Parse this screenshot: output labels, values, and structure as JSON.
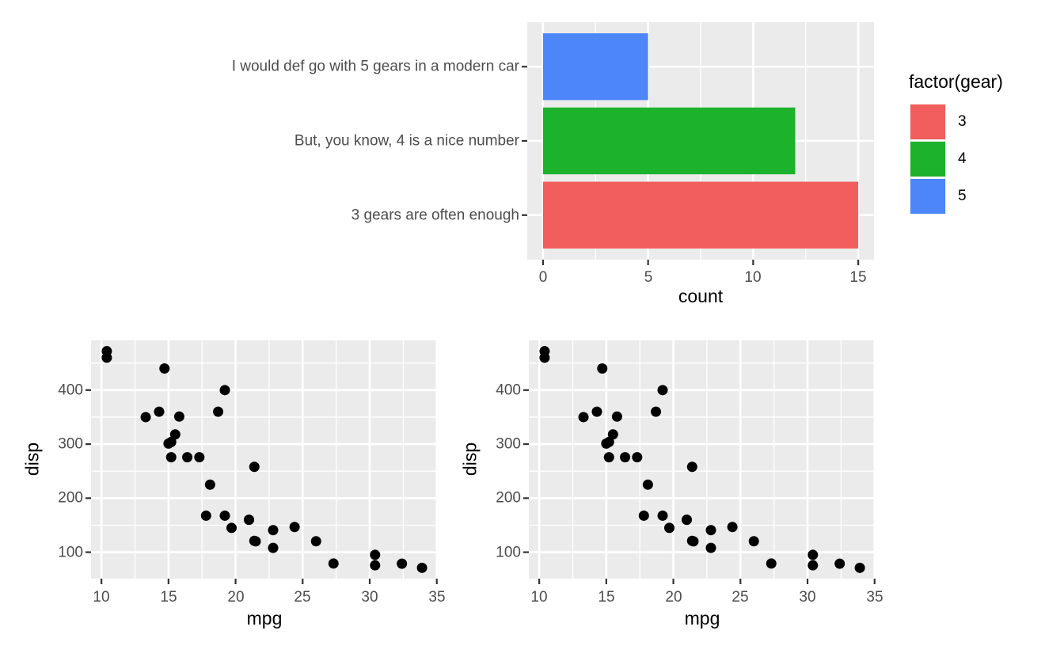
{
  "colors": {
    "background": "#FFFFFF",
    "panel_background": "#EBEBEB",
    "grid": "#FFFFFF",
    "tick_label": "#4D4D4D",
    "axis_title": "#000000",
    "tick_mark": "#333333",
    "point": "#000000"
  },
  "chart_data": [
    {
      "id": "gear-bar-chart",
      "type": "bar",
      "orientation": "horizontal",
      "xlabel": "count",
      "categories": [
        "3 gears are often enough",
        "But, you know, 4 is a nice number",
        "I would def go with 5 gears in a modern car"
      ],
      "values": [
        15,
        12,
        5
      ],
      "bar_colors": [
        "#F25D5D",
        "#1CB22B",
        "#4C86F9"
      ],
      "x_ticks": [
        0,
        5,
        10,
        15
      ],
      "x_minor": [
        2.5,
        7.5,
        12.5
      ],
      "xlim": [
        -0.75,
        15.75
      ],
      "bar_width": 0.9,
      "grid": true,
      "legend": {
        "title": "factor(gear)",
        "position": "right",
        "entries": [
          {
            "label": "3",
            "color": "#F25D5D"
          },
          {
            "label": "4",
            "color": "#1CB22B"
          },
          {
            "label": "5",
            "color": "#4C86F9"
          }
        ]
      }
    },
    {
      "id": "mpg-disp-scatter-left",
      "type": "scatter",
      "xlabel": "mpg",
      "ylabel": "disp",
      "x_ticks": [
        10,
        15,
        20,
        25,
        30,
        35
      ],
      "y_ticks": [
        100,
        200,
        300,
        400
      ],
      "x_minor": [
        12.5,
        17.5,
        22.5,
        27.5,
        32.5
      ],
      "y_minor": [
        150,
        250,
        350,
        450
      ],
      "xlim": [
        9.225,
        35.075
      ],
      "ylim": [
        51.055,
        492.045
      ],
      "grid": true,
      "points": [
        [
          21.0,
          160
        ],
        [
          21.0,
          160
        ],
        [
          22.8,
          108
        ],
        [
          21.4,
          258
        ],
        [
          18.7,
          360
        ],
        [
          18.1,
          225
        ],
        [
          14.3,
          360
        ],
        [
          24.4,
          146.7
        ],
        [
          22.8,
          140.8
        ],
        [
          19.2,
          167.6
        ],
        [
          17.8,
          167.6
        ],
        [
          16.4,
          275.8
        ],
        [
          17.3,
          275.8
        ],
        [
          15.2,
          275.8
        ],
        [
          10.4,
          472
        ],
        [
          10.4,
          460
        ],
        [
          14.7,
          440
        ],
        [
          32.4,
          78.7
        ],
        [
          30.4,
          75.7
        ],
        [
          33.9,
          71.1
        ],
        [
          21.5,
          120.1
        ],
        [
          15.5,
          318
        ],
        [
          15.2,
          304
        ],
        [
          13.3,
          350
        ],
        [
          19.2,
          400
        ],
        [
          27.3,
          79
        ],
        [
          26.0,
          120.3
        ],
        [
          30.4,
          95.1
        ],
        [
          15.8,
          351
        ],
        [
          19.7,
          145
        ],
        [
          15.0,
          301
        ],
        [
          21.4,
          121
        ]
      ]
    },
    {
      "id": "mpg-disp-scatter-right",
      "type": "scatter",
      "xlabel": "mpg",
      "ylabel": "disp",
      "x_ticks": [
        10,
        15,
        20,
        25,
        30,
        35
      ],
      "y_ticks": [
        100,
        200,
        300,
        400
      ],
      "x_minor": [
        12.5,
        17.5,
        22.5,
        27.5,
        32.5
      ],
      "y_minor": [
        150,
        250,
        350,
        450
      ],
      "xlim": [
        9.225,
        35.075
      ],
      "ylim": [
        51.055,
        492.045
      ],
      "grid": true,
      "points": [
        [
          21.0,
          160
        ],
        [
          21.0,
          160
        ],
        [
          22.8,
          108
        ],
        [
          21.4,
          258
        ],
        [
          18.7,
          360
        ],
        [
          18.1,
          225
        ],
        [
          14.3,
          360
        ],
        [
          24.4,
          146.7
        ],
        [
          22.8,
          140.8
        ],
        [
          19.2,
          167.6
        ],
        [
          17.8,
          167.6
        ],
        [
          16.4,
          275.8
        ],
        [
          17.3,
          275.8
        ],
        [
          15.2,
          275.8
        ],
        [
          10.4,
          472
        ],
        [
          10.4,
          460
        ],
        [
          14.7,
          440
        ],
        [
          32.4,
          78.7
        ],
        [
          30.4,
          75.7
        ],
        [
          33.9,
          71.1
        ],
        [
          21.5,
          120.1
        ],
        [
          15.5,
          318
        ],
        [
          15.2,
          304
        ],
        [
          13.3,
          350
        ],
        [
          19.2,
          400
        ],
        [
          27.3,
          79
        ],
        [
          26.0,
          120.3
        ],
        [
          30.4,
          95.1
        ],
        [
          15.8,
          351
        ],
        [
          19.7,
          145
        ],
        [
          15.0,
          301
        ],
        [
          21.4,
          121
        ]
      ]
    }
  ]
}
